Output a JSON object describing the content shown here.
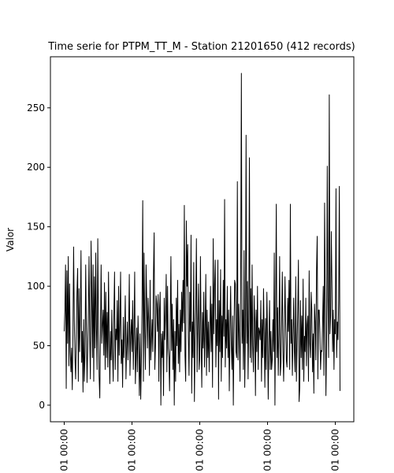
{
  "chart_data": {
    "type": "line",
    "title": "Time serie for PTPM_TT_M - Station 21201650 (412 records)",
    "y_label": "Valor",
    "color": "#000000",
    "xlim": [
      -20.55,
      431.55
    ],
    "xticks": [
      {
        "value": 0,
        "label": "01 00:00"
      },
      {
        "value": 101,
        "label": "01 00:00"
      },
      {
        "value": 202,
        "label": "01 00:00"
      },
      {
        "value": 303,
        "label": "01 00:00"
      },
      {
        "value": 404,
        "label": "01 00:00"
      }
    ],
    "ylim": [
      -13.95,
      292.95
    ],
    "yticks": [
      0,
      50,
      100,
      150,
      200,
      250
    ],
    "grid": false,
    "values": [
      62,
      80,
      118,
      14,
      113,
      52,
      125,
      33,
      102,
      45,
      28,
      48,
      13,
      60,
      133,
      72,
      40,
      22,
      60,
      95,
      115,
      20,
      98,
      45,
      75,
      130,
      36,
      62,
      11,
      72,
      20,
      45,
      118,
      62,
      19,
      48,
      80,
      125,
      55,
      22,
      138,
      98,
      40,
      118,
      20,
      108,
      48,
      128,
      65,
      30,
      140,
      72,
      24,
      6,
      60,
      118,
      52,
      68,
      80,
      42,
      103,
      30,
      95,
      40,
      78,
      32,
      112,
      55,
      18,
      62,
      38,
      80,
      45,
      20,
      75,
      112,
      30,
      64,
      55,
      88,
      20,
      100,
      42,
      68,
      112,
      35,
      55,
      15,
      74,
      40,
      60,
      92,
      22,
      48,
      70,
      38,
      62,
      110,
      25,
      58,
      72,
      45,
      88,
      30,
      62,
      112,
      18,
      40,
      65,
      28,
      75,
      50,
      8,
      60,
      5,
      38,
      85,
      172,
      20,
      128,
      62,
      30,
      118,
      85,
      48,
      90,
      70,
      25,
      105,
      38,
      55,
      72,
      45,
      110,
      145,
      30,
      50,
      92,
      85,
      62,
      93,
      20,
      80,
      95,
      0,
      60,
      40,
      62,
      8,
      90,
      55,
      78,
      110,
      28,
      100,
      48,
      40,
      12,
      70,
      125,
      46,
      85,
      30,
      72,
      0,
      62,
      20,
      90,
      50,
      105,
      35,
      68,
      28,
      80,
      45,
      95,
      62,
      105,
      69,
      168,
      42,
      20,
      155,
      100,
      135,
      58,
      25,
      95,
      62,
      143,
      10,
      70,
      40,
      120,
      3,
      55,
      80,
      140,
      28,
      64,
      102,
      30,
      40,
      125,
      55,
      15,
      78,
      48,
      95,
      32,
      62,
      110,
      25,
      80,
      40,
      70,
      28,
      62,
      100,
      45,
      85,
      15,
      140,
      60,
      100,
      122,
      32,
      72,
      50,
      122,
      5,
      88,
      45,
      114,
      20,
      75,
      40,
      105,
      58,
      173,
      32,
      72,
      48,
      100,
      40,
      80,
      12,
      62,
      100,
      50,
      30,
      75,
      0,
      60,
      105,
      102,
      45,
      40,
      188,
      38,
      85,
      55,
      20,
      110,
      279,
      52,
      80,
      30,
      130,
      15,
      64,
      227,
      52,
      104,
      22,
      72,
      208,
      40,
      98,
      36,
      118,
      50,
      28,
      92,
      70,
      8,
      80,
      45,
      100,
      30,
      65,
      62,
      55,
      88,
      20,
      72,
      40,
      98,
      58,
      15,
      73,
      30,
      95,
      60,
      5,
      55,
      88,
      30,
      62,
      30,
      38,
      72,
      45,
      128,
      0,
      75,
      169,
      40,
      82,
      25,
      60,
      125,
      25,
      35,
      68,
      112,
      45,
      20,
      60,
      108,
      70,
      38,
      32,
      90,
      62,
      105,
      30,
      169,
      52,
      72,
      25,
      58,
      90,
      45,
      28,
      108,
      20,
      50,
      80,
      122,
      3,
      15,
      88,
      40,
      75,
      30,
      106,
      20,
      58,
      45,
      90,
      33,
      68,
      75,
      20,
      113,
      52,
      40,
      95,
      80,
      28,
      60,
      10,
      85,
      70,
      38,
      114,
      142,
      22,
      80,
      80,
      61,
      30,
      46,
      45,
      68,
      100,
      25,
      170,
      85,
      8,
      55,
      201,
      90,
      40,
      261,
      60,
      75,
      146,
      100,
      45,
      80,
      30,
      72,
      60,
      182,
      40,
      70,
      55,
      88,
      184,
      12
    ]
  }
}
